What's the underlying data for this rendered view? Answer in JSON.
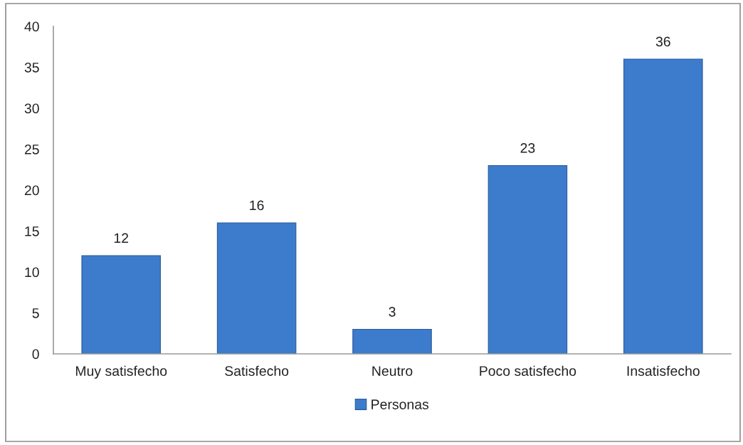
{
  "chart_data": {
    "type": "bar",
    "categories": [
      "Muy satisfecho",
      "Satisfecho",
      "Neutro",
      "Poco satisfecho",
      "Insatisfecho"
    ],
    "series": [
      {
        "name": "Personas",
        "color": "#3d7bcc",
        "values": [
          12,
          16,
          3,
          23,
          36
        ]
      }
    ],
    "ylim": [
      0,
      40
    ],
    "yticks": [
      0,
      5,
      10,
      15,
      20,
      25,
      30,
      35,
      40
    ],
    "data_labels": true,
    "grid": false,
    "legend": "bottom"
  }
}
